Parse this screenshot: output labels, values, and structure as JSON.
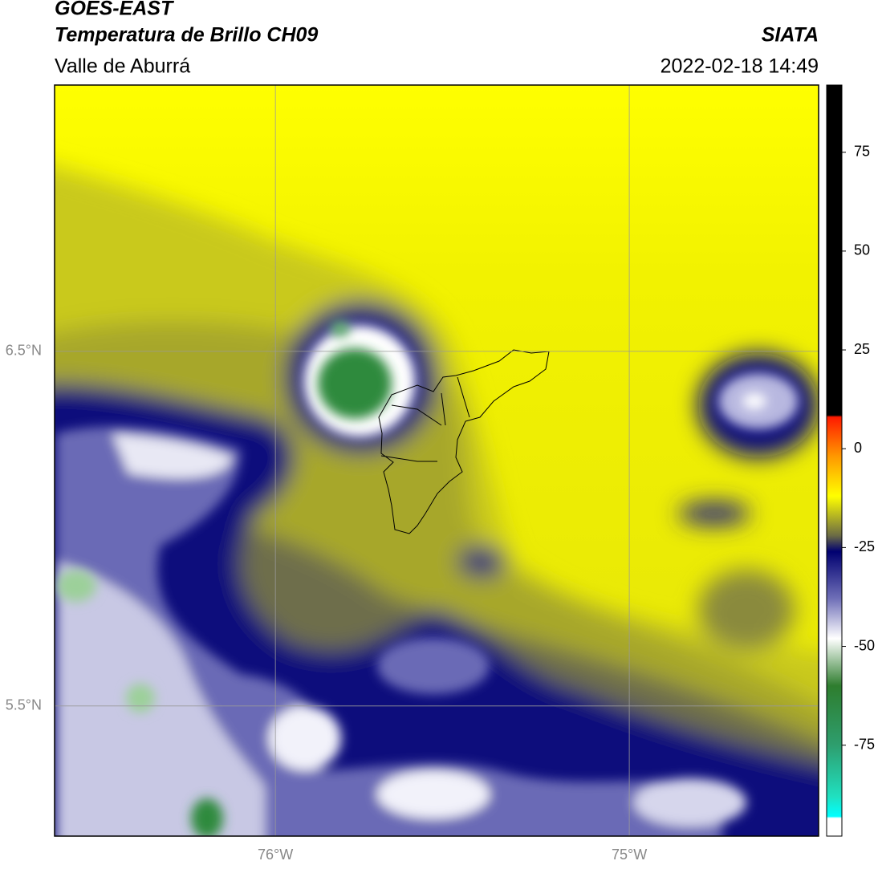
{
  "header": {
    "title": "GOES-EAST",
    "subtitle": "Temperatura de Brillo CH09",
    "region": "Valle de Aburrá",
    "source": "SIATA",
    "datetime": "2022-02-18 14:49"
  },
  "map": {
    "xlim": [
      -76.624,
      -74.465
    ],
    "ylim": [
      5.133,
      7.251
    ],
    "grid": true,
    "xticks": [
      {
        "value": -76,
        "label": "76°W"
      },
      {
        "value": -75,
        "label": "75°W"
      }
    ],
    "yticks": [
      {
        "value": 6.5,
        "label": "6.5°N"
      },
      {
        "value": 5.5,
        "label": "5.5°N"
      }
    ]
  },
  "colorbar": {
    "lim": [
      -98,
      92
    ],
    "ticks": [
      75,
      50,
      25,
      0,
      -25,
      -50,
      -75
    ],
    "stops": [
      {
        "value": 92,
        "color": "#000000"
      },
      {
        "value": 8.5,
        "color": "#000000"
      },
      {
        "value": 8,
        "color": "#ff1a00"
      },
      {
        "value": -2,
        "color": "#ff9900"
      },
      {
        "value": -12,
        "color": "#ffff00"
      },
      {
        "value": -22,
        "color": "#6b6b45"
      },
      {
        "value": -26,
        "color": "#000070"
      },
      {
        "value": -38,
        "color": "#7070b8"
      },
      {
        "value": -48,
        "color": "#ffffff"
      },
      {
        "value": -60,
        "color": "#2e7d2e"
      },
      {
        "value": -75,
        "color": "#2e9e6e"
      },
      {
        "value": -88,
        "color": "#20e0c0"
      },
      {
        "value": -93,
        "color": "#00ffff"
      },
      {
        "value": -93.5,
        "color": "#ffffff"
      },
      {
        "value": -98,
        "color": "#ffffff"
      }
    ]
  }
}
